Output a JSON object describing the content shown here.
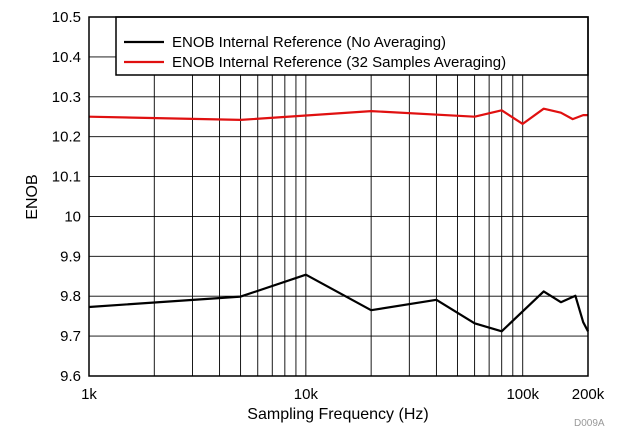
{
  "chart_data": {
    "type": "line",
    "xlabel": "Sampling Frequency (Hz)",
    "ylabel": "ENOB",
    "x_scale": "log",
    "xlim": [
      1000,
      200000
    ],
    "ylim": [
      9.6,
      10.5
    ],
    "x_ticks": [
      {
        "value": 1000,
        "label": "1k"
      },
      {
        "value": 10000,
        "label": "10k"
      },
      {
        "value": 100000,
        "label": "100k"
      },
      {
        "value": 200000,
        "label": "200k"
      }
    ],
    "y_ticks": [
      {
        "value": 9.6,
        "label": "9.6"
      },
      {
        "value": 9.7,
        "label": "9.7"
      },
      {
        "value": 9.8,
        "label": "9.8"
      },
      {
        "value": 9.9,
        "label": "9.9"
      },
      {
        "value": 10.0,
        "label": "10"
      },
      {
        "value": 10.1,
        "label": "10.1"
      },
      {
        "value": 10.2,
        "label": "10.2"
      },
      {
        "value": 10.3,
        "label": "10.3"
      },
      {
        "value": 10.4,
        "label": "10.4"
      },
      {
        "value": 10.5,
        "label": "10.5"
      }
    ],
    "grid": true,
    "legend_position": "top-right",
    "series": [
      {
        "name": "ENOB Internal Reference (No Averaging)",
        "color": "#000000",
        "x": [
          1000,
          5000,
          10000,
          20000,
          40000,
          60000,
          80000,
          125000,
          150000,
          175000,
          190000,
          200000
        ],
        "y": [
          9.773,
          9.799,
          9.854,
          9.765,
          9.791,
          9.732,
          9.712,
          9.812,
          9.785,
          9.801,
          9.735,
          9.712
        ]
      },
      {
        "name": "ENOB Internal Reference (32 Samples Averaging)",
        "color": "#e01010",
        "x": [
          1000,
          5000,
          20000,
          60000,
          80000,
          100000,
          125000,
          150000,
          170000,
          190000,
          200000
        ],
        "y": [
          10.25,
          10.242,
          10.264,
          10.25,
          10.266,
          10.232,
          10.27,
          10.26,
          10.244,
          10.254,
          10.254
        ]
      }
    ],
    "figure_code": "D009A"
  }
}
